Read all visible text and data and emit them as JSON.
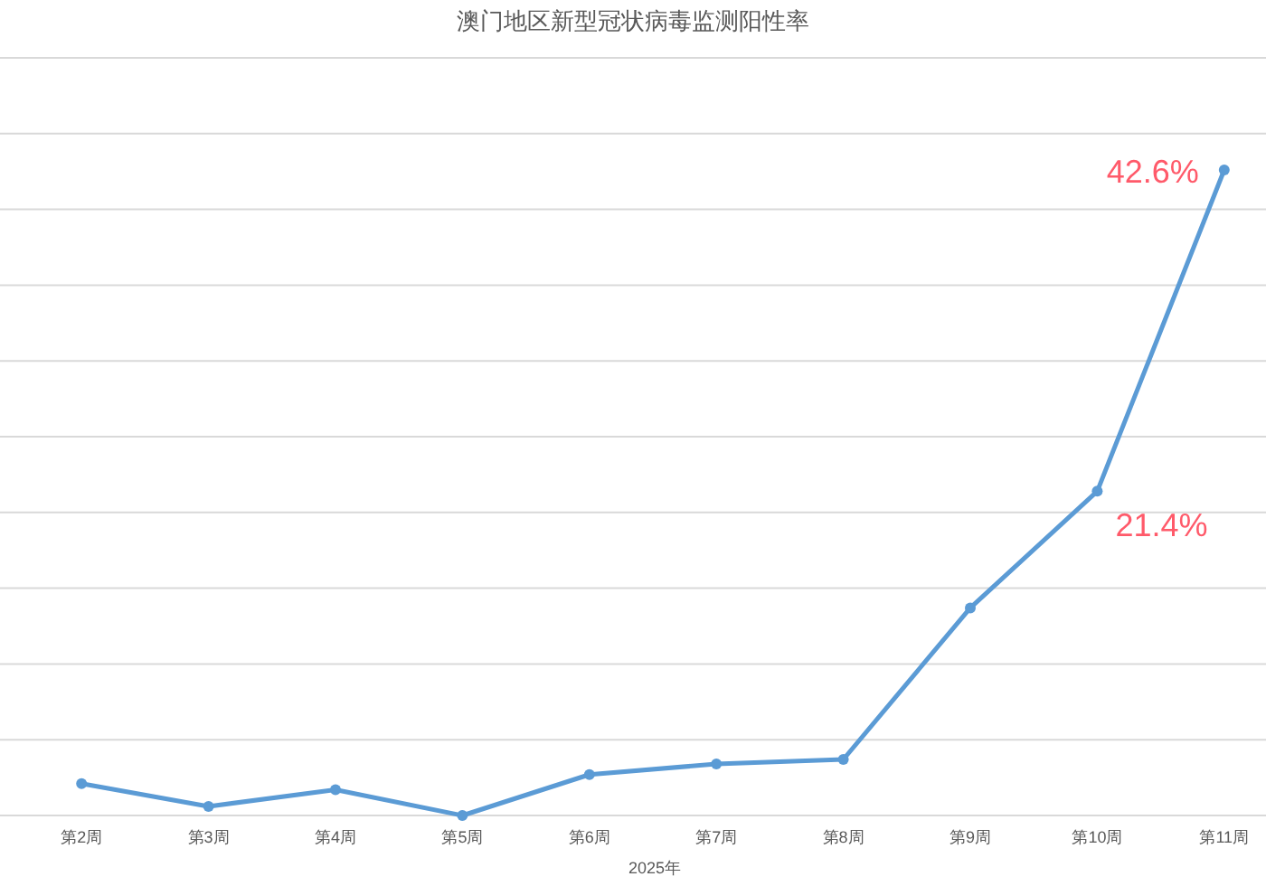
{
  "chart_data": {
    "type": "line",
    "title": "澳门地区新型冠状病毒监测阳性率",
    "xlabel": "2025年",
    "categories": [
      "第2周",
      "第3周",
      "第4周",
      "第5周",
      "第6周",
      "第7周",
      "第8周",
      "第9周",
      "第10周",
      "第11周"
    ],
    "values": [
      2.1,
      0.6,
      1.7,
      0,
      2.7,
      3.4,
      3.7,
      13.7,
      21.4,
      42.6
    ],
    "value_labels": [
      null,
      null,
      null,
      null,
      null,
      null,
      null,
      null,
      "21.4%",
      "42.6%"
    ],
    "color": "#5b9bd5",
    "ylim": [
      0,
      50
    ],
    "yticks": [
      {
        "value": 0,
        "label": null
      },
      {
        "value": 5,
        "label": null
      },
      {
        "value": 10,
        "label": null
      },
      {
        "value": 15,
        "label": null
      },
      {
        "value": 20,
        "label": null
      },
      {
        "value": 25,
        "label": null
      },
      {
        "value": 30,
        "label": null
      },
      {
        "value": 35,
        "label": null
      },
      {
        "value": 40,
        "label": null
      },
      {
        "value": 45,
        "label": null
      },
      {
        "value": 50,
        "label": null
      }
    ],
    "tick_labels": "x",
    "grid": "y",
    "marker": "circle",
    "line_style": "solid"
  }
}
